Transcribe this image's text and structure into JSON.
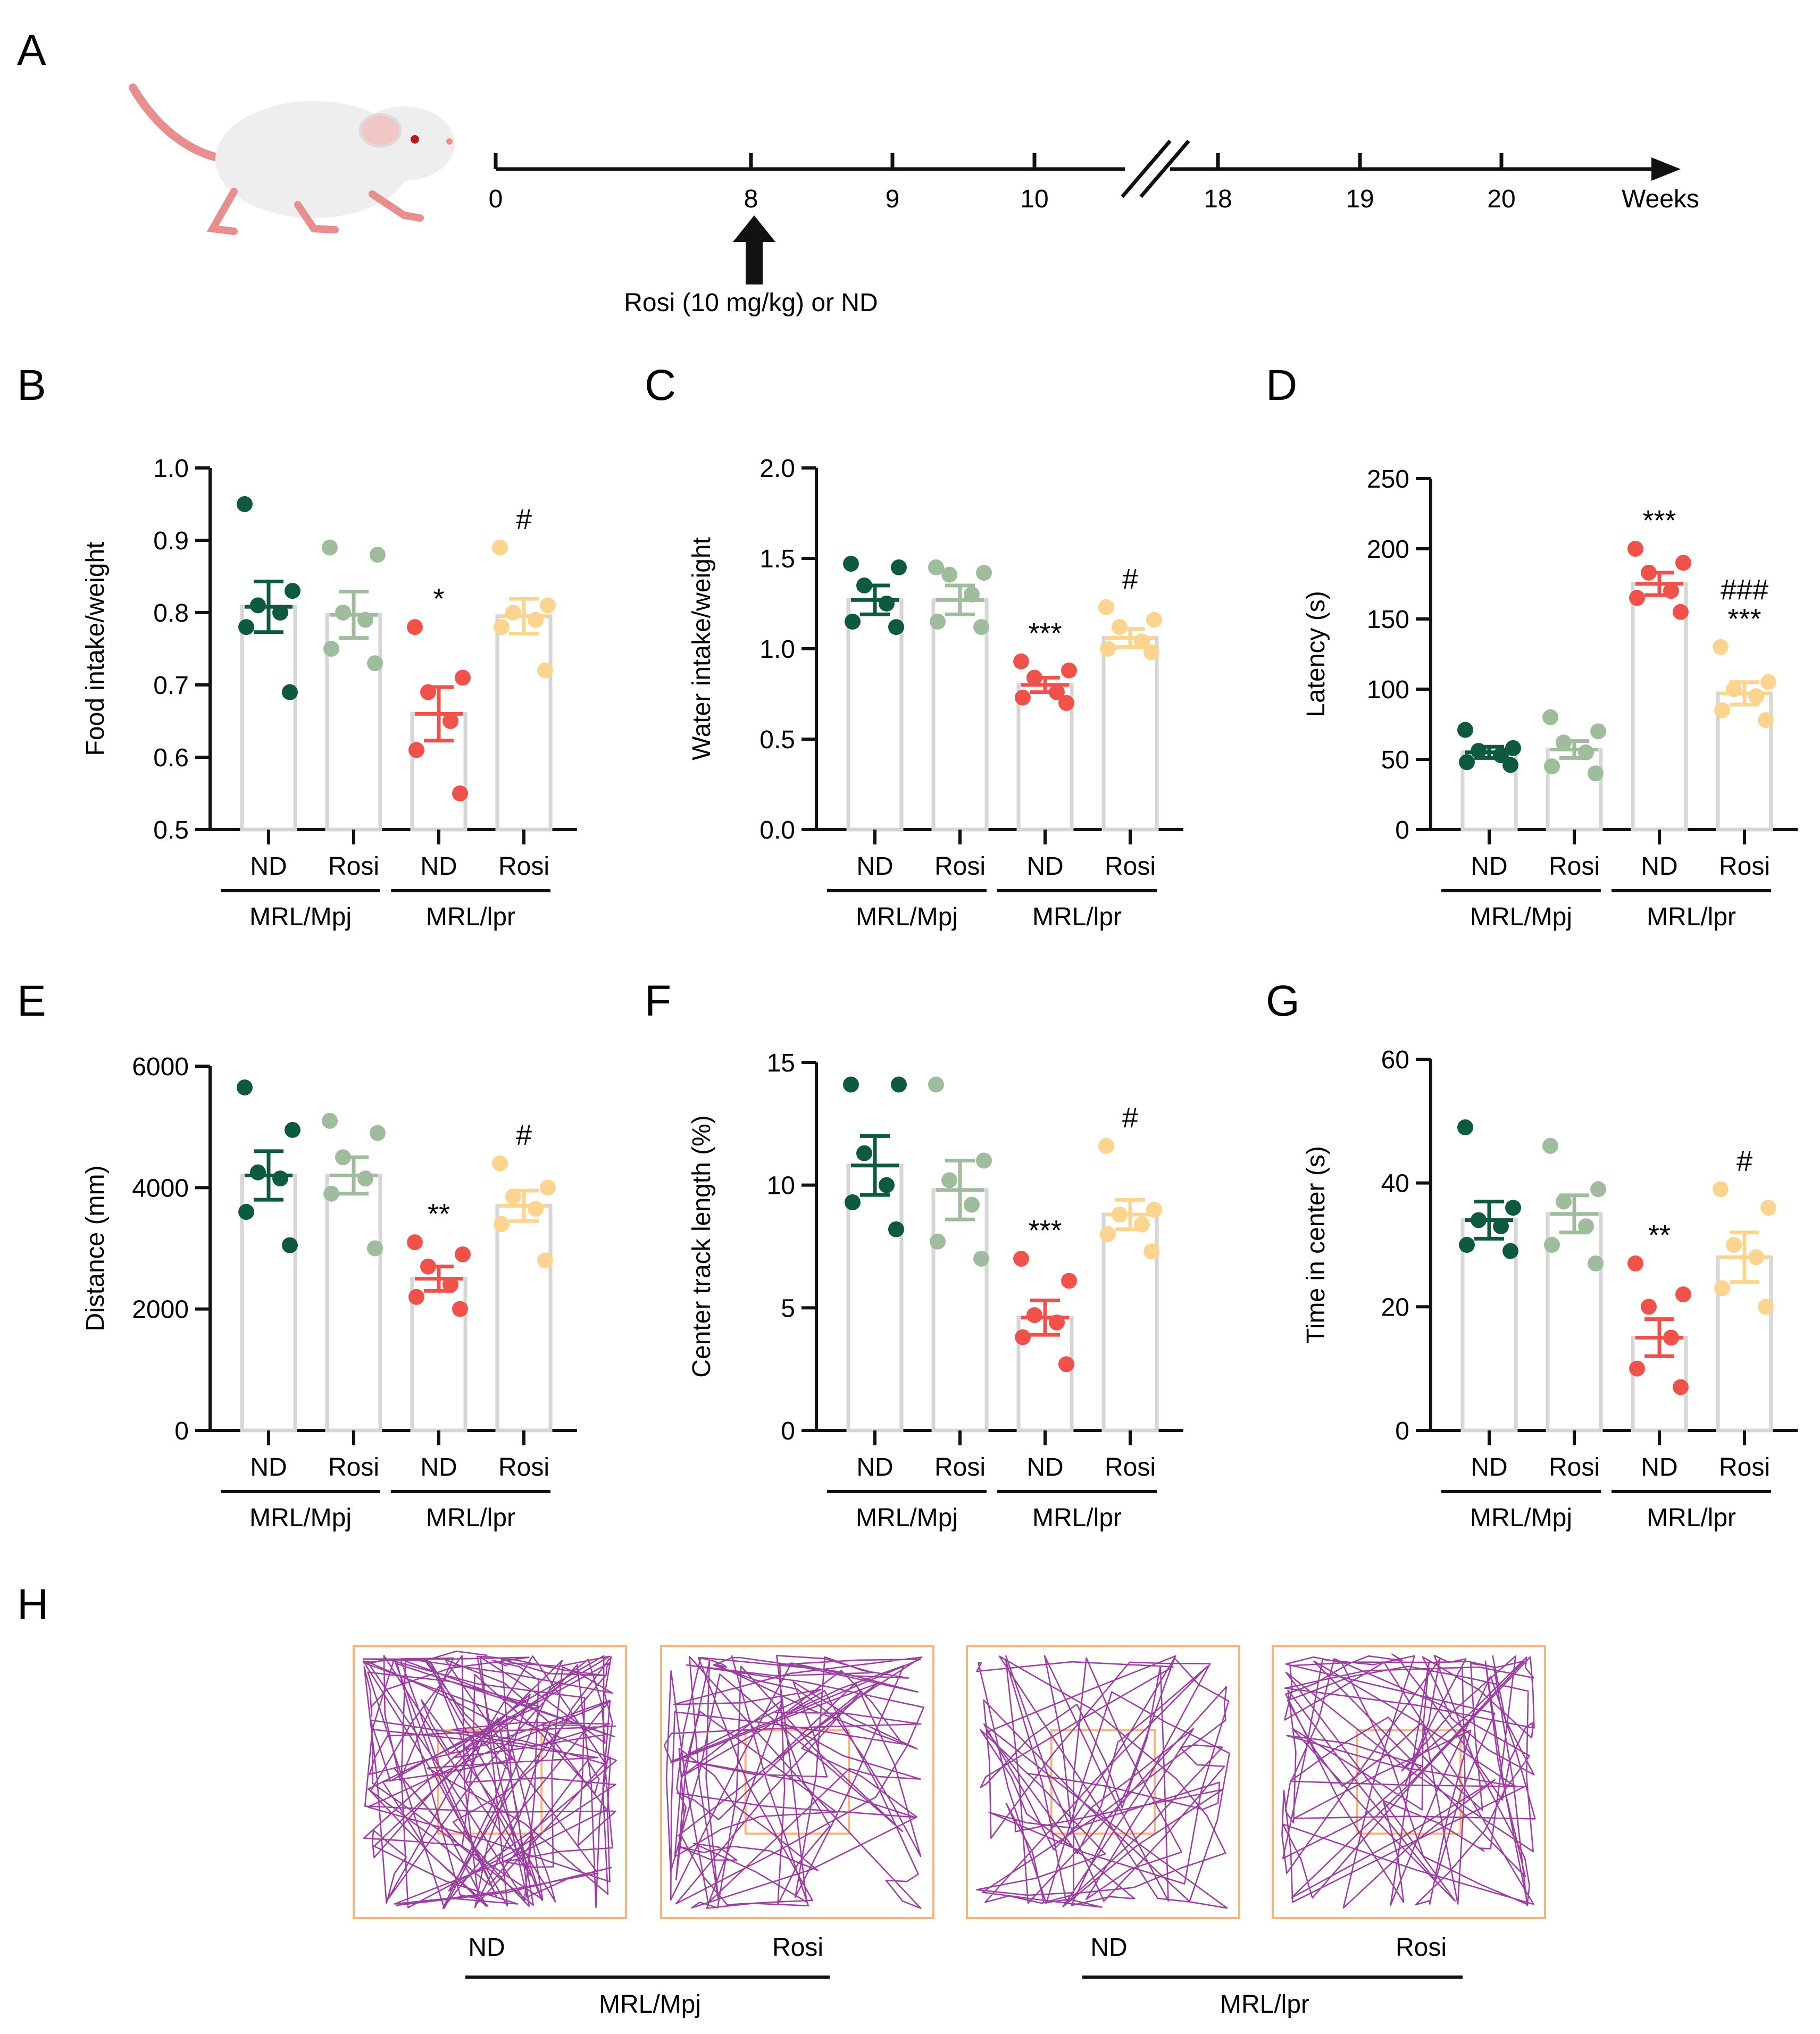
{
  "figure_panels": {
    "A": "A",
    "B": "B",
    "C": "C",
    "D": "D",
    "E": "E",
    "F": "F",
    "G": "G",
    "H": "H"
  },
  "colors": {
    "mpj_nd": "#0d5a3e",
    "mpj_rosi": "#9fbc9c",
    "lpr_nd": "#f0524b",
    "lpr_rosi": "#fbd48f",
    "bar_outline": "#d6d6d6",
    "track": "#9b3fa0",
    "arena": "#f6b47a",
    "mouse_body": "#eeeeee",
    "mouse_tail": "#e98e8f"
  },
  "timeline": {
    "ticks": [
      "0",
      "8",
      "9",
      "10",
      "18",
      "19",
      "20"
    ],
    "unit": "Weeks",
    "treatment": "Rosi (10 mg/kg) or ND"
  },
  "groups": {
    "treatments": [
      "ND",
      "Rosi",
      "ND",
      "Rosi"
    ],
    "strains": [
      "MRL/Mpj",
      "MRL/lpr"
    ]
  },
  "chart_data": [
    {
      "panel": "B",
      "type": "bar",
      "ylabel": "Food intake/weight",
      "ylim": [
        0.5,
        1.0
      ],
      "yticks": [
        "0.5",
        "0.6",
        "0.7",
        "0.8",
        "0.9",
        "1.0"
      ],
      "series": [
        {
          "name": "MRL/Mpj ND",
          "mean": 0.808,
          "sem": 0.035,
          "points": [
            0.95,
            0.83,
            0.81,
            0.8,
            0.78,
            0.69
          ]
        },
        {
          "name": "MRL/Mpj Rosi",
          "mean": 0.797,
          "sem": 0.032,
          "points": [
            0.89,
            0.88,
            0.8,
            0.79,
            0.75,
            0.73
          ]
        },
        {
          "name": "MRL/lpr ND",
          "mean": 0.66,
          "sem": 0.037,
          "points": [
            0.78,
            0.71,
            0.69,
            0.65,
            0.61,
            0.55
          ]
        },
        {
          "name": "MRL/lpr Rosi",
          "mean": 0.795,
          "sem": 0.024,
          "points": [
            0.89,
            0.81,
            0.8,
            0.79,
            0.78,
            0.72
          ]
        }
      ],
      "annotations": [
        "",
        "",
        "*",
        "#"
      ]
    },
    {
      "panel": "C",
      "type": "bar",
      "ylabel": "Water intake/weight",
      "ylim": [
        0.0,
        2.0
      ],
      "yticks": [
        "0.0",
        "0.5",
        "1.0",
        "1.5",
        "2.0"
      ],
      "series": [
        {
          "name": "MRL/Mpj ND",
          "mean": 1.27,
          "sem": 0.08,
          "points": [
            1.47,
            1.45,
            1.35,
            1.25,
            1.15,
            1.12
          ]
        },
        {
          "name": "MRL/Mpj Rosi",
          "mean": 1.27,
          "sem": 0.08,
          "points": [
            1.45,
            1.42,
            1.41,
            1.3,
            1.15,
            1.12
          ]
        },
        {
          "name": "MRL/lpr ND",
          "mean": 0.8,
          "sem": 0.04,
          "points": [
            0.93,
            0.88,
            0.84,
            0.76,
            0.73,
            0.7
          ]
        },
        {
          "name": "MRL/lpr Rosi",
          "mean": 1.06,
          "sem": 0.05,
          "points": [
            1.23,
            1.16,
            1.12,
            1.04,
            1.0,
            0.98
          ]
        }
      ],
      "annotations": [
        "",
        "",
        "***",
        "#"
      ]
    },
    {
      "panel": "D",
      "type": "bar",
      "ylabel": "Latency (s)",
      "ylim": [
        0,
        250
      ],
      "yticks": [
        "0",
        "50",
        "100",
        "150",
        "200",
        "250"
      ],
      "series": [
        {
          "name": "MRL/Mpj ND",
          "mean": 55,
          "sem": 4,
          "points": [
            71,
            58,
            56,
            53,
            48,
            46
          ]
        },
        {
          "name": "MRL/Mpj Rosi",
          "mean": 57,
          "sem": 6,
          "points": [
            80,
            70,
            62,
            55,
            45,
            40
          ]
        },
        {
          "name": "MRL/lpr ND",
          "mean": 175,
          "sem": 8,
          "points": [
            200,
            190,
            183,
            170,
            165,
            155
          ]
        },
        {
          "name": "MRL/lpr Rosi",
          "mean": 97,
          "sem": 8,
          "points": [
            130,
            105,
            100,
            95,
            85,
            78
          ]
        }
      ],
      "annotations": [
        "",
        "",
        "***",
        "###\n***"
      ]
    },
    {
      "panel": "E",
      "type": "bar",
      "ylabel": "Distance (mm)",
      "ylim": [
        0,
        6000
      ],
      "yticks": [
        "0",
        "2000",
        "4000",
        "6000"
      ],
      "series": [
        {
          "name": "MRL/Mpj ND",
          "mean": 4200,
          "sem": 400,
          "points": [
            5650,
            4950,
            4250,
            4150,
            3600,
            3050
          ]
        },
        {
          "name": "MRL/Mpj Rosi",
          "mean": 4200,
          "sem": 300,
          "points": [
            5100,
            4900,
            4500,
            4150,
            3900,
            3000
          ]
        },
        {
          "name": "MRL/lpr ND",
          "mean": 2500,
          "sem": 200,
          "points": [
            3100,
            2900,
            2700,
            2400,
            2200,
            2000
          ]
        },
        {
          "name": "MRL/lpr Rosi",
          "mean": 3700,
          "sem": 250,
          "points": [
            4400,
            4000,
            3850,
            3650,
            3400,
            2800
          ]
        }
      ],
      "annotations": [
        "",
        "",
        "**",
        "#"
      ]
    },
    {
      "panel": "F",
      "type": "bar",
      "ylabel": "Center track length (%)",
      "ylim": [
        0,
        15
      ],
      "yticks": [
        "0",
        "5",
        "10",
        "15"
      ],
      "series": [
        {
          "name": "MRL/Mpj ND",
          "mean": 10.8,
          "sem": 1.2,
          "points": [
            14.1,
            14.1,
            11.3,
            10.0,
            9.3,
            8.2
          ]
        },
        {
          "name": "MRL/Mpj Rosi",
          "mean": 9.8,
          "sem": 1.2,
          "points": [
            14.1,
            11.0,
            10.2,
            9.2,
            7.7,
            7.0
          ]
        },
        {
          "name": "MRL/lpr ND",
          "mean": 4.6,
          "sem": 0.7,
          "points": [
            7.0,
            6.1,
            4.7,
            4.4,
            3.8,
            2.7
          ]
        },
        {
          "name": "MRL/lpr Rosi",
          "mean": 8.8,
          "sem": 0.6,
          "points": [
            11.6,
            9.0,
            8.8,
            8.4,
            8.0,
            7.3
          ]
        }
      ],
      "annotations": [
        "",
        "",
        "***",
        "#"
      ]
    },
    {
      "panel": "G",
      "type": "bar",
      "ylabel": "Time in center (s)",
      "ylim": [
        0,
        60
      ],
      "yticks": [
        "0",
        "20",
        "40",
        "60"
      ],
      "series": [
        {
          "name": "MRL/Mpj ND",
          "mean": 34,
          "sem": 3,
          "points": [
            49,
            36,
            34,
            33,
            30,
            29
          ]
        },
        {
          "name": "MRL/Mpj Rosi",
          "mean": 35,
          "sem": 3,
          "points": [
            46,
            39,
            37,
            33,
            30,
            27
          ]
        },
        {
          "name": "MRL/lpr ND",
          "mean": 15,
          "sem": 3,
          "points": [
            27,
            22,
            20,
            15,
            10,
            7
          ]
        },
        {
          "name": "MRL/lpr Rosi",
          "mean": 28,
          "sem": 4,
          "points": [
            39,
            36,
            30,
            28,
            23,
            20
          ]
        }
      ],
      "annotations": [
        "",
        "",
        "**",
        "#"
      ]
    }
  ],
  "open_field": {
    "labels": [
      "ND",
      "Rosi",
      "ND",
      "Rosi"
    ],
    "strains": [
      "MRL/Mpj",
      "MRL/lpr"
    ]
  }
}
